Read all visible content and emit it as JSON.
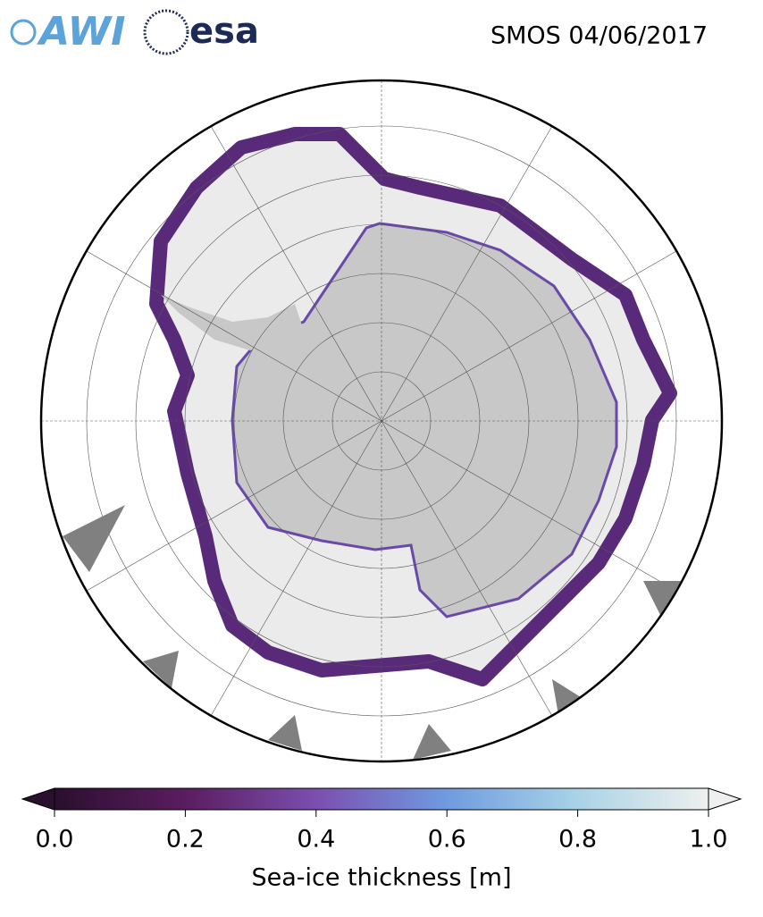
{
  "header": {
    "logos": [
      "AWI",
      "esa"
    ],
    "title": "SMOS 04/06/2017"
  },
  "colorbar": {
    "label": "Sea-ice thickness [m]",
    "lim": [
      0,
      1
    ],
    "ticks": [
      {
        "value": 0,
        "label": "0.0"
      },
      {
        "value": 0.2,
        "label": "0.2"
      },
      {
        "value": 0.4,
        "label": "0.4"
      },
      {
        "value": 0.6,
        "label": "0.6"
      },
      {
        "value": 0.8,
        "label": "0.8"
      },
      {
        "value": 1,
        "label": "1.0"
      }
    ],
    "colors": [
      "#2a0f2e",
      "#5a1d5e",
      "#7b4fb0",
      "#6f9be0",
      "#a9d3e6",
      "#eef0ee"
    ]
  }
}
